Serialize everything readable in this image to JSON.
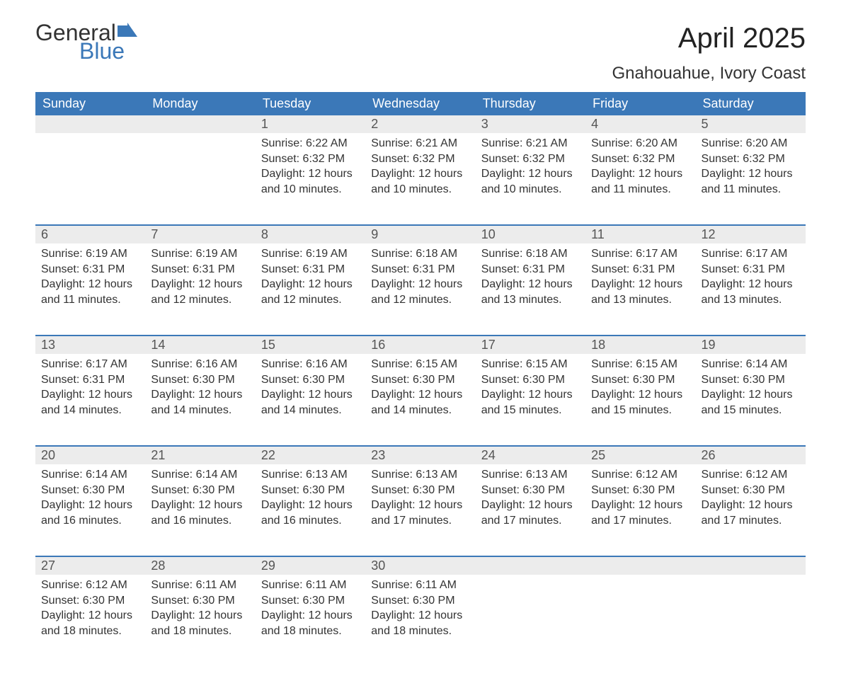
{
  "logo": {
    "text1": "General",
    "text2": "Blue"
  },
  "title": "April 2025",
  "location": "Gnahouahue, Ivory Coast",
  "colors": {
    "header_bg": "#3b78b8",
    "header_fg": "#ffffff",
    "daynum_bg": "#ececec",
    "week_border": "#3b78b8",
    "text": "#333333",
    "page_bg": "#ffffff"
  },
  "weekdays": [
    "Sunday",
    "Monday",
    "Tuesday",
    "Wednesday",
    "Thursday",
    "Friday",
    "Saturday"
  ],
  "weeks": [
    [
      null,
      null,
      {
        "n": "1",
        "sr": "6:22 AM",
        "ss": "6:32 PM",
        "dl": "12 hours and 10 minutes."
      },
      {
        "n": "2",
        "sr": "6:21 AM",
        "ss": "6:32 PM",
        "dl": "12 hours and 10 minutes."
      },
      {
        "n": "3",
        "sr": "6:21 AM",
        "ss": "6:32 PM",
        "dl": "12 hours and 10 minutes."
      },
      {
        "n": "4",
        "sr": "6:20 AM",
        "ss": "6:32 PM",
        "dl": "12 hours and 11 minutes."
      },
      {
        "n": "5",
        "sr": "6:20 AM",
        "ss": "6:32 PM",
        "dl": "12 hours and 11 minutes."
      }
    ],
    [
      {
        "n": "6",
        "sr": "6:19 AM",
        "ss": "6:31 PM",
        "dl": "12 hours and 11 minutes."
      },
      {
        "n": "7",
        "sr": "6:19 AM",
        "ss": "6:31 PM",
        "dl": "12 hours and 12 minutes."
      },
      {
        "n": "8",
        "sr": "6:19 AM",
        "ss": "6:31 PM",
        "dl": "12 hours and 12 minutes."
      },
      {
        "n": "9",
        "sr": "6:18 AM",
        "ss": "6:31 PM",
        "dl": "12 hours and 12 minutes."
      },
      {
        "n": "10",
        "sr": "6:18 AM",
        "ss": "6:31 PM",
        "dl": "12 hours and 13 minutes."
      },
      {
        "n": "11",
        "sr": "6:17 AM",
        "ss": "6:31 PM",
        "dl": "12 hours and 13 minutes."
      },
      {
        "n": "12",
        "sr": "6:17 AM",
        "ss": "6:31 PM",
        "dl": "12 hours and 13 minutes."
      }
    ],
    [
      {
        "n": "13",
        "sr": "6:17 AM",
        "ss": "6:31 PM",
        "dl": "12 hours and 14 minutes."
      },
      {
        "n": "14",
        "sr": "6:16 AM",
        "ss": "6:30 PM",
        "dl": "12 hours and 14 minutes."
      },
      {
        "n": "15",
        "sr": "6:16 AM",
        "ss": "6:30 PM",
        "dl": "12 hours and 14 minutes."
      },
      {
        "n": "16",
        "sr": "6:15 AM",
        "ss": "6:30 PM",
        "dl": "12 hours and 14 minutes."
      },
      {
        "n": "17",
        "sr": "6:15 AM",
        "ss": "6:30 PM",
        "dl": "12 hours and 15 minutes."
      },
      {
        "n": "18",
        "sr": "6:15 AM",
        "ss": "6:30 PM",
        "dl": "12 hours and 15 minutes."
      },
      {
        "n": "19",
        "sr": "6:14 AM",
        "ss": "6:30 PM",
        "dl": "12 hours and 15 minutes."
      }
    ],
    [
      {
        "n": "20",
        "sr": "6:14 AM",
        "ss": "6:30 PM",
        "dl": "12 hours and 16 minutes."
      },
      {
        "n": "21",
        "sr": "6:14 AM",
        "ss": "6:30 PM",
        "dl": "12 hours and 16 minutes."
      },
      {
        "n": "22",
        "sr": "6:13 AM",
        "ss": "6:30 PM",
        "dl": "12 hours and 16 minutes."
      },
      {
        "n": "23",
        "sr": "6:13 AM",
        "ss": "6:30 PM",
        "dl": "12 hours and 17 minutes."
      },
      {
        "n": "24",
        "sr": "6:13 AM",
        "ss": "6:30 PM",
        "dl": "12 hours and 17 minutes."
      },
      {
        "n": "25",
        "sr": "6:12 AM",
        "ss": "6:30 PM",
        "dl": "12 hours and 17 minutes."
      },
      {
        "n": "26",
        "sr": "6:12 AM",
        "ss": "6:30 PM",
        "dl": "12 hours and 17 minutes."
      }
    ],
    [
      {
        "n": "27",
        "sr": "6:12 AM",
        "ss": "6:30 PM",
        "dl": "12 hours and 18 minutes."
      },
      {
        "n": "28",
        "sr": "6:11 AM",
        "ss": "6:30 PM",
        "dl": "12 hours and 18 minutes."
      },
      {
        "n": "29",
        "sr": "6:11 AM",
        "ss": "6:30 PM",
        "dl": "12 hours and 18 minutes."
      },
      {
        "n": "30",
        "sr": "6:11 AM",
        "ss": "6:30 PM",
        "dl": "12 hours and 18 minutes."
      },
      null,
      null,
      null
    ]
  ],
  "labels": {
    "sunrise": "Sunrise: ",
    "sunset": "Sunset: ",
    "daylight": "Daylight: "
  }
}
